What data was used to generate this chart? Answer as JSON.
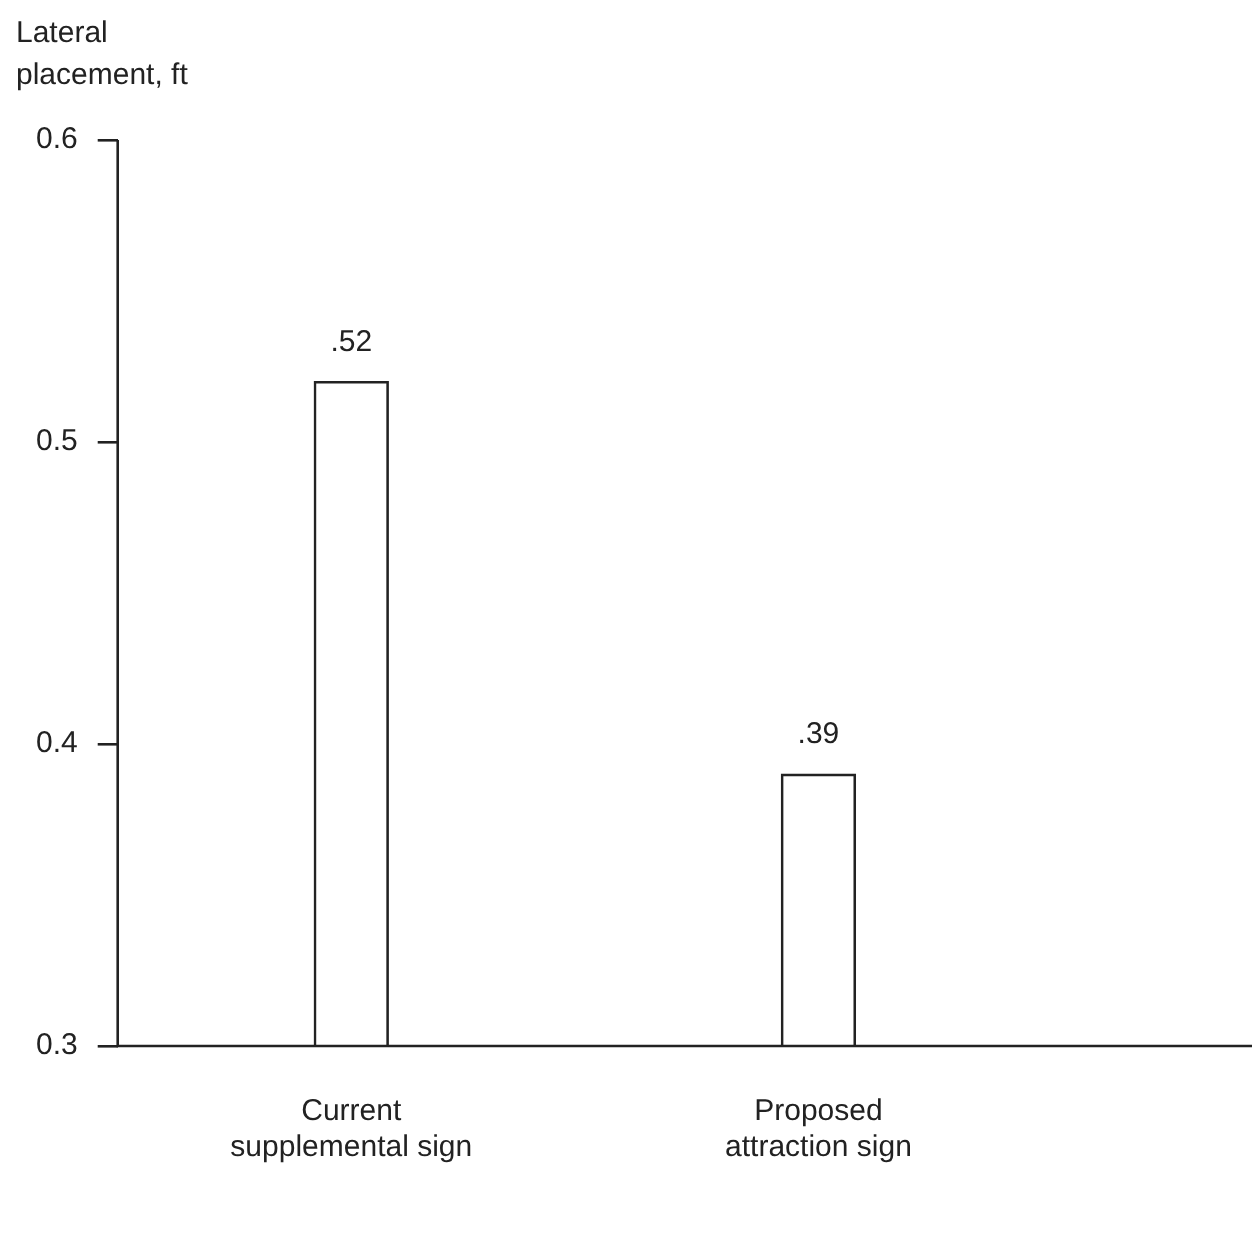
{
  "chart_data": {
    "type": "bar",
    "ylabel": "Lateral placement, ft",
    "categories": [
      "Current supplemental sign",
      "Proposed attraction sign"
    ],
    "values": [
      0.52,
      0.39
    ],
    "color": "#ffffff",
    "value_labels": [
      ".52",
      ".39"
    ],
    "ylim": [
      0.3,
      0.6
    ],
    "yticks": [
      0.3,
      0.4,
      0.5,
      0.6
    ],
    "grid": false,
    "legend": false
  }
}
